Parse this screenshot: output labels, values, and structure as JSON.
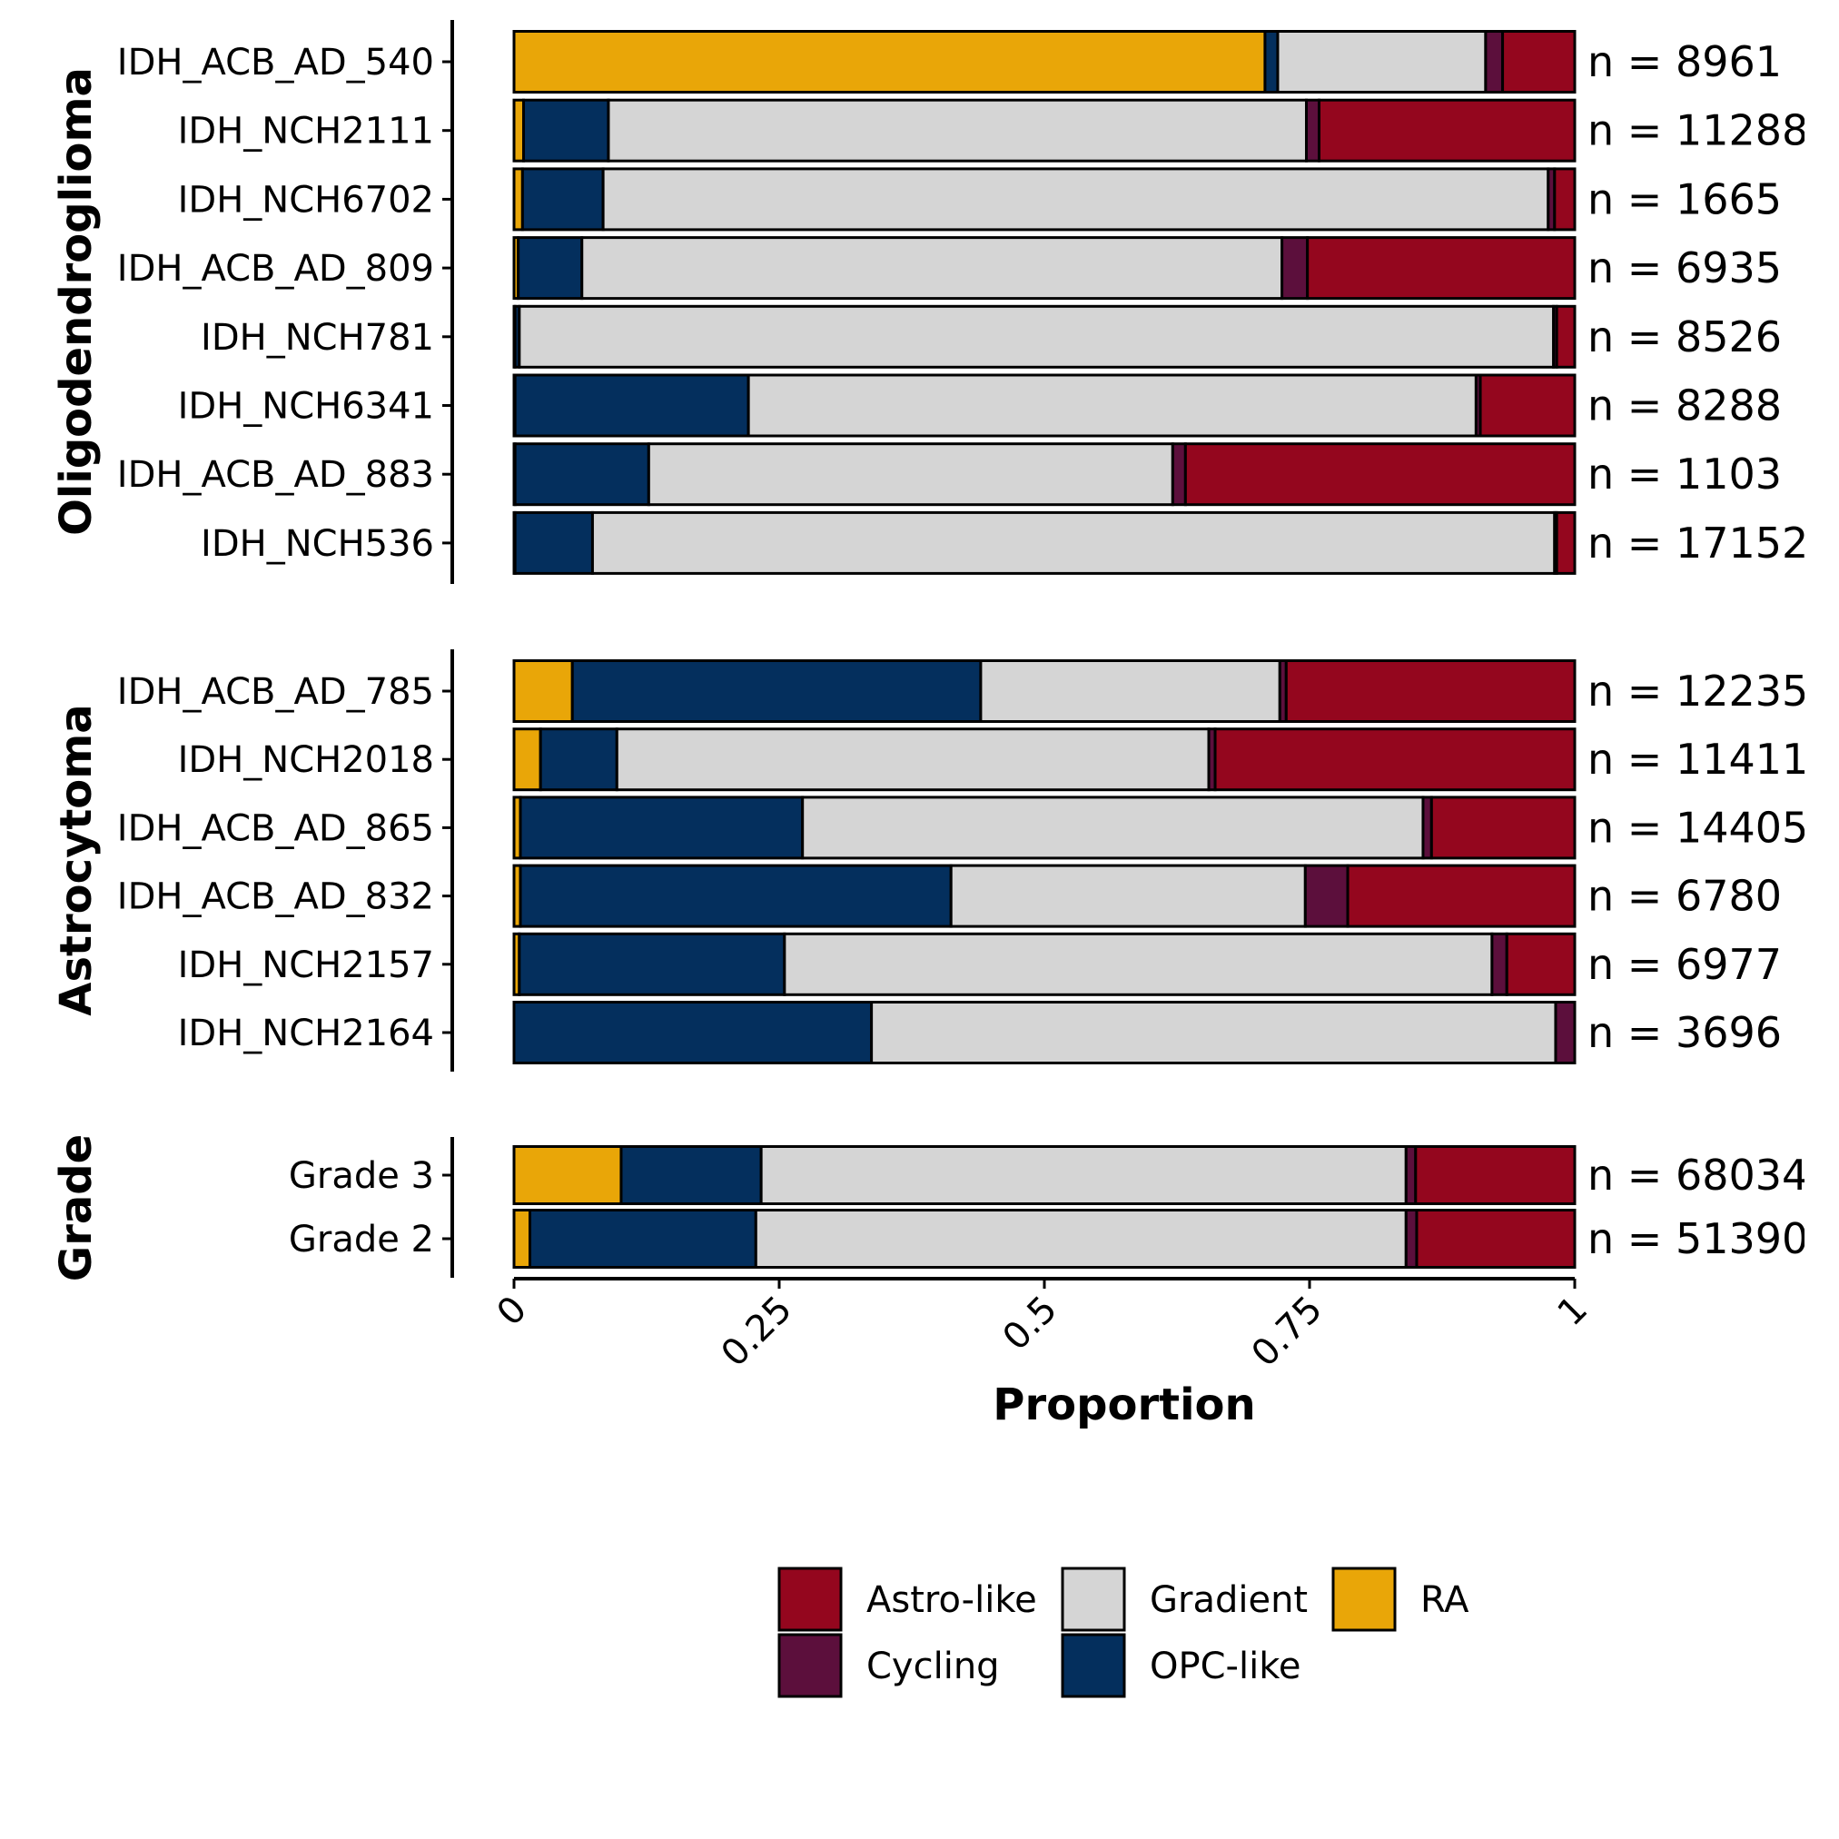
{
  "chart_data": {
    "type": "bar",
    "orientation": "horizontal",
    "stacked": true,
    "xlabel": "Proportion",
    "xlim": [
      0,
      1
    ],
    "xticks": [
      "0",
      "0.25",
      "0.5",
      "0.75",
      "1"
    ],
    "stack_order": [
      "RA",
      "OPC-like",
      "Gradient",
      "Cycling",
      "Astro-like"
    ],
    "colors": {
      "Astro-like": "#94061e",
      "Cycling": "#5c0f3c",
      "Gradient": "#d5d5d5",
      "OPC-like": "#042f5d",
      "RA": "#e9a608"
    },
    "legend": {
      "position": "bottom",
      "entries": [
        "Astro-like",
        "Cycling",
        "Gradient",
        "OPC-like",
        "RA"
      ]
    },
    "panels": [
      {
        "title": "Oligodendroglioma",
        "categories": [
          "IDH_ACB_AD_540",
          "IDH_NCH2111",
          "IDH_NCH6702",
          "IDH_ACB_AD_809",
          "IDH_NCH781",
          "IDH_NCH6341",
          "IDH_ACB_AD_883",
          "IDH_NCH536"
        ],
        "n_labels": [
          "n = 8961",
          "n = 11288",
          "n = 1665",
          "n = 6935",
          "n = 8526",
          "n = 8288",
          "n = 1103",
          "n = 17152"
        ],
        "series": [
          {
            "name": "RA",
            "values": [
              0.708,
              0.009,
              0.008,
              0.004,
              0.001,
              0.001,
              0.001,
              0.001
            ]
          },
          {
            "name": "OPC-like",
            "values": [
              0.012,
              0.08,
              0.076,
              0.06,
              0.004,
              0.22,
              0.126,
              0.073
            ]
          },
          {
            "name": "Gradient",
            "values": [
              0.196,
              0.658,
              0.891,
              0.66,
              0.975,
              0.686,
              0.494,
              0.907
            ]
          },
          {
            "name": "Cycling",
            "values": [
              0.016,
              0.012,
              0.006,
              0.024,
              0.003,
              0.004,
              0.012,
              0.002
            ]
          },
          {
            "name": "Astro-like",
            "values": [
              0.068,
              0.241,
              0.019,
              0.252,
              0.017,
              0.089,
              0.367,
              0.017
            ]
          }
        ]
      },
      {
        "title": "Astrocytoma",
        "categories": [
          "IDH_ACB_AD_785",
          "IDH_NCH2018",
          "IDH_ACB_AD_865",
          "IDH_ACB_AD_832",
          "IDH_NCH2157",
          "IDH_NCH2164"
        ],
        "n_labels": [
          "n = 12235",
          "n = 11411",
          "n = 14405",
          "n = 6780",
          "n = 6977",
          "n = 3696"
        ],
        "series": [
          {
            "name": "RA",
            "values": [
              0.055,
              0.025,
              0.006,
              0.006,
              0.005,
              0.0
            ]
          },
          {
            "name": "OPC-like",
            "values": [
              0.385,
              0.072,
              0.266,
              0.406,
              0.25,
              0.337
            ]
          },
          {
            "name": "Gradient",
            "values": [
              0.282,
              0.558,
              0.585,
              0.334,
              0.667,
              0.645
            ]
          },
          {
            "name": "Cycling",
            "values": [
              0.006,
              0.006,
              0.008,
              0.04,
              0.014,
              0.018
            ]
          },
          {
            "name": "Astro-like",
            "values": [
              0.272,
              0.339,
              0.135,
              0.214,
              0.064,
              0.0
            ]
          }
        ]
      },
      {
        "title": "Grade",
        "categories": [
          "Grade 3",
          "Grade 2"
        ],
        "n_labels": [
          "n = 68034",
          "n = 51390"
        ],
        "series": [
          {
            "name": "RA",
            "values": [
              0.101,
              0.015
            ]
          },
          {
            "name": "OPC-like",
            "values": [
              0.132,
              0.213
            ]
          },
          {
            "name": "Gradient",
            "values": [
              0.608,
              0.613
            ]
          },
          {
            "name": "Cycling",
            "values": [
              0.009,
              0.01
            ]
          },
          {
            "name": "Astro-like",
            "values": [
              0.15,
              0.149
            ]
          }
        ]
      }
    ]
  }
}
